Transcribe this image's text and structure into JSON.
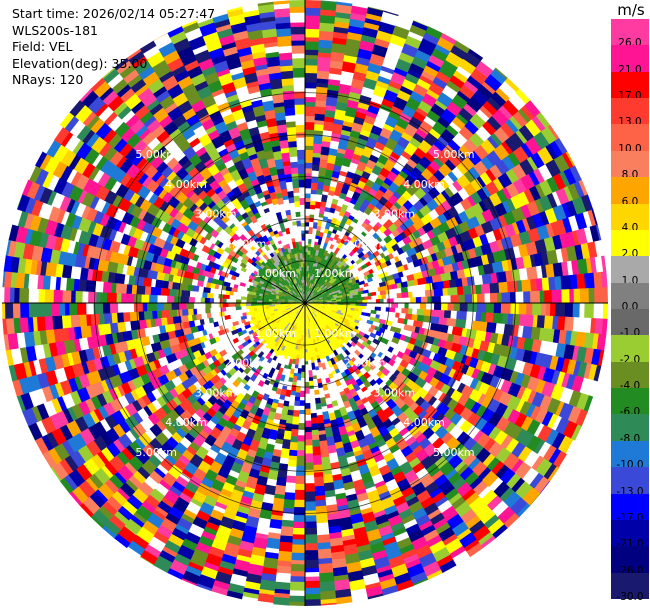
{
  "header": {
    "start_time": "Start time: 2026/02/14 05:27:47",
    "instrument": "WLS200s-181",
    "field": "Field: VEL",
    "elevation": "Elevation(deg): 35.00",
    "nrays": "NRays: 120"
  },
  "colorbar": {
    "unit": "m/s",
    "levels": [
      {
        "label": "26.0",
        "color": "#ff3aa0"
      },
      {
        "label": "21.0",
        "color": "#ff1493"
      },
      {
        "label": "17.0",
        "color": "#ff0000"
      },
      {
        "label": "13.0",
        "color": "#ff3b2f"
      },
      {
        "label": "10.0",
        "color": "#ff6347"
      },
      {
        "label": "8.0",
        "color": "#fa7f5f"
      },
      {
        "label": "6.0",
        "color": "#ffa500"
      },
      {
        "label": "4.0",
        "color": "#ffd700"
      },
      {
        "label": "2.0",
        "color": "#ffff00"
      },
      {
        "label": "1.0",
        "color": "#a9a9a9"
      },
      {
        "label": "0.0",
        "color": "#808080"
      },
      {
        "label": "-1.0",
        "color": "#696969"
      },
      {
        "label": "-2.0",
        "color": "#9acd32"
      },
      {
        "label": "-4.0",
        "color": "#6b8e23"
      },
      {
        "label": "-6.0",
        "color": "#228b22"
      },
      {
        "label": "-8.0",
        "color": "#2e8b57"
      },
      {
        "label": "-10.0",
        "color": "#1e7ad6"
      },
      {
        "label": "-13.0",
        "color": "#3a49d8"
      },
      {
        "label": "-17.0",
        "color": "#0000ff"
      },
      {
        "label": "-21.0",
        "color": "#0000a8"
      },
      {
        "label": "-26.0",
        "color": "#000080"
      },
      {
        "label": "-30.0",
        "color": "#191970"
      }
    ]
  },
  "range_rings": [
    {
      "label": "1.00km"
    },
    {
      "label": "2.00km"
    },
    {
      "label": "3.00km"
    },
    {
      "label": "4.00km"
    },
    {
      "label": "5.00km"
    }
  ],
  "plot": {
    "nrays": 120,
    "max_range_km": 7.2
  }
}
